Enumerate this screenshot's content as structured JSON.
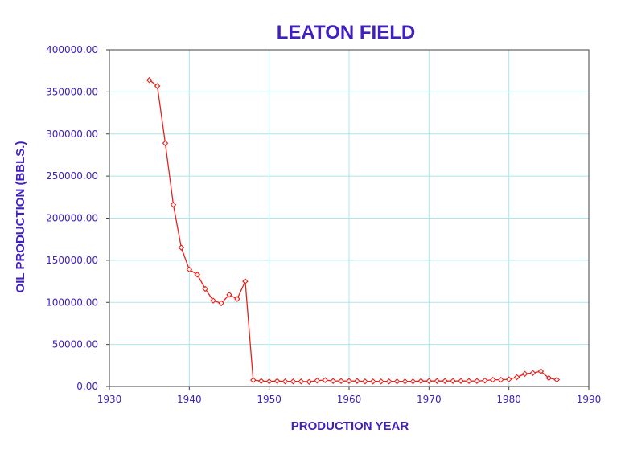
{
  "chart_data": {
    "type": "line",
    "title": "LEATON FIELD",
    "xlabel": "PRODUCTION YEAR",
    "ylabel": "OIL PRODUCTION (BBLS.)",
    "xlim": [
      1930,
      1990
    ],
    "ylim": [
      0,
      400000
    ],
    "x_ticks": [
      1930,
      1940,
      1950,
      1960,
      1970,
      1980,
      1990
    ],
    "x_tick_labels": [
      "1930",
      "1940",
      "1950",
      "1960",
      "1970",
      "1980",
      "1990"
    ],
    "y_ticks": [
      0,
      50000,
      100000,
      150000,
      200000,
      250000,
      300000,
      350000,
      400000
    ],
    "y_tick_labels": [
      "0.00",
      "50000.00",
      "100000.00",
      "150000.00",
      "200000.00",
      "250000.00",
      "300000.00",
      "350000.00",
      "400000.00"
    ],
    "grid": true,
    "legend": "none",
    "series": [
      {
        "x": [
          1935,
          1936,
          1937,
          1938,
          1939,
          1940,
          1941,
          1942,
          1943,
          1944,
          1945,
          1946,
          1947,
          1948,
          1949,
          1950,
          1951,
          1952,
          1953,
          1954,
          1955,
          1956,
          1957,
          1958,
          1959,
          1960,
          1961,
          1962,
          1963,
          1964,
          1965,
          1966,
          1967,
          1968,
          1969,
          1970,
          1971,
          1972,
          1973,
          1974,
          1975,
          1976,
          1977,
          1978,
          1979,
          1980,
          1981,
          1982,
          1983,
          1984,
          1985,
          1986
        ],
        "y": [
          364000,
          357000,
          289000,
          216000,
          165000,
          139000,
          133000,
          116000,
          102000,
          99000,
          109000,
          104000,
          125000,
          7500,
          6500,
          6000,
          6500,
          6000,
          6000,
          6000,
          5500,
          7000,
          7500,
          6500,
          6500,
          6500,
          6500,
          6000,
          6000,
          6000,
          6000,
          6000,
          6000,
          6000,
          6500,
          6500,
          6500,
          6500,
          6500,
          6500,
          6500,
          6500,
          7000,
          8000,
          8000,
          8500,
          11000,
          15000,
          16000,
          18000,
          10000,
          8000
        ]
      }
    ],
    "colors": {
      "line": "#e8201c",
      "text": "#4020c0",
      "grid": "#a8e8ec",
      "axis": "#404040"
    }
  }
}
